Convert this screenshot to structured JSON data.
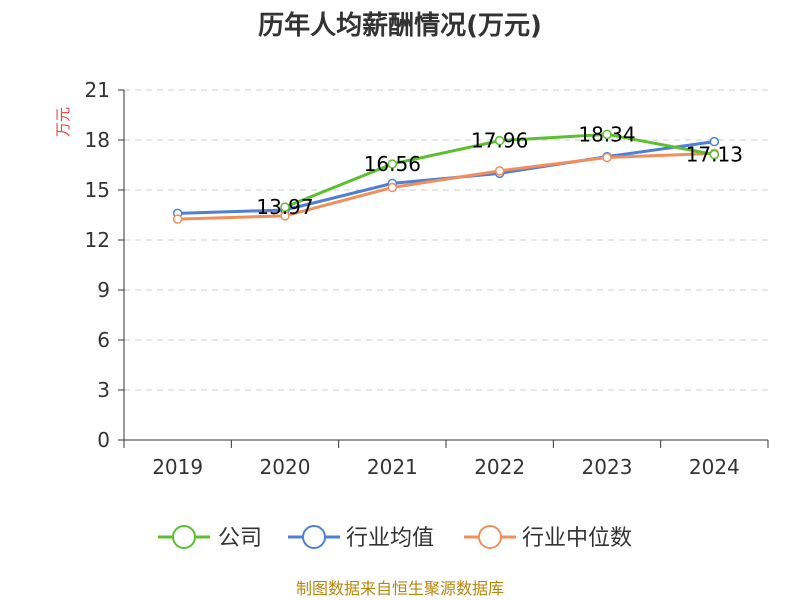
{
  "chart_data": {
    "type": "line",
    "title": "历年人均薪酬情况(万元)",
    "ylabel": "万元",
    "xlabel": "",
    "categories": [
      "2019",
      "2020",
      "2021",
      "2022",
      "2023",
      "2024"
    ],
    "ylim": [
      0,
      21
    ],
    "yticks": [
      0,
      3,
      6,
      9,
      12,
      15,
      18,
      21
    ],
    "grid": true,
    "legend_position": "bottom",
    "series": [
      {
        "name": "公司",
        "color": "#5bbf2e",
        "values": [
          null,
          13.97,
          16.56,
          17.96,
          18.34,
          17.13
        ],
        "labels": [
          "",
          "13.97",
          "16.56",
          "17.96",
          "18.34",
          "17.13"
        ]
      },
      {
        "name": "行业均值",
        "color": "#4d7fd6",
        "values": [
          13.6,
          13.8,
          15.4,
          16.0,
          17.0,
          17.9
        ]
      },
      {
        "name": "行业中位数",
        "color": "#f28e5c",
        "values": [
          13.25,
          13.45,
          15.15,
          16.15,
          16.95,
          17.2
        ]
      }
    ]
  },
  "source": "制图数据来自恒生聚源数据库"
}
